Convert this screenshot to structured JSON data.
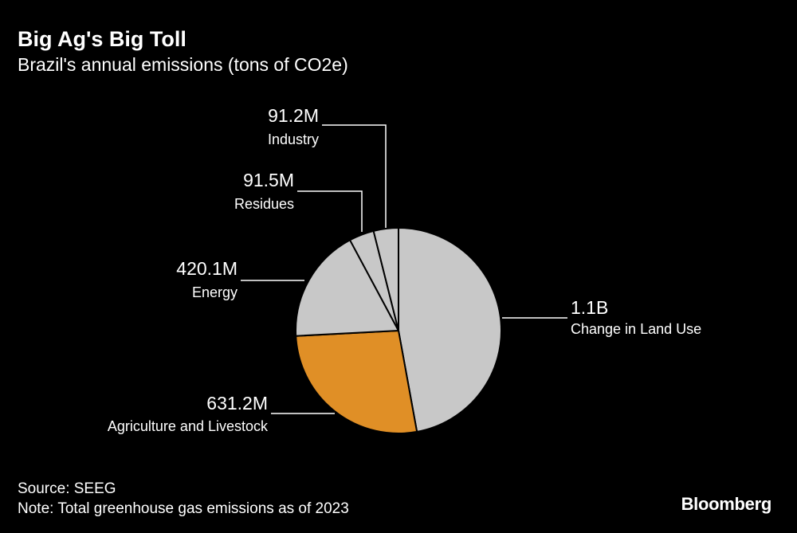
{
  "title": "Big Ag's Big Toll",
  "subtitle": "Brazil's annual emissions (tons of CO2e)",
  "source": "Source: SEEG",
  "note": "Note: Total greenhouse gas emissions as of 2023",
  "brand": "Bloomberg",
  "colors": {
    "background": "#000000",
    "slice_gray": "#c8c8c8",
    "slice_orange": "#e08f26",
    "slice_border": "#000000",
    "leader": "#ffffff",
    "text": "#ffffff"
  },
  "chart_data": {
    "type": "pie",
    "title": "Big Ag's Big Toll",
    "subtitle": "Brazil's annual emissions (tons of CO2e)",
    "slices": [
      {
        "label": "Change in Land Use",
        "value": 1100,
        "value_label": "1.1B",
        "color": "#c8c8c8"
      },
      {
        "label": "Agriculture and Livestock",
        "value": 631.2,
        "value_label": "631.2M",
        "color": "#e08f26"
      },
      {
        "label": "Energy",
        "value": 420.1,
        "value_label": "420.1M",
        "color": "#c8c8c8"
      },
      {
        "label": "Residues",
        "value": 91.5,
        "value_label": "91.5M",
        "color": "#c8c8c8"
      },
      {
        "label": "Industry",
        "value": 91.2,
        "value_label": "91.2M",
        "color": "#c8c8c8"
      }
    ],
    "start_angle": "12 o'clock",
    "direction": "clockwise"
  }
}
